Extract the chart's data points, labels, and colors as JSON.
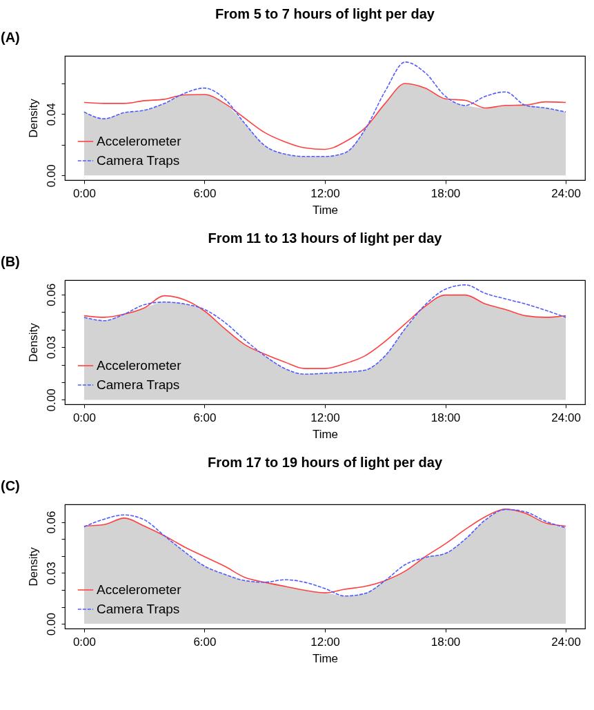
{
  "chart_data": [
    {
      "type": "line",
      "title": "From 5 to 7 hours of light per day",
      "xlabel": "Time",
      "ylabel": "Density",
      "annotations": [
        "(A)"
      ],
      "legend": "bottom left",
      "grid": false,
      "x": [
        0,
        1,
        2,
        3,
        4,
        5,
        6,
        7,
        8,
        9,
        10,
        11,
        12,
        13,
        14,
        15,
        16,
        17,
        18,
        19,
        20,
        21,
        22,
        23,
        24
      ],
      "xlim": [
        -0.96,
        24.96
      ],
      "xticks": [
        {
          "value": 0,
          "label": "0:00"
        },
        {
          "value": 6,
          "label": "6:00"
        },
        {
          "value": 12,
          "label": "12:00"
        },
        {
          "value": 18,
          "label": "18:00"
        },
        {
          "value": 24,
          "label": "24:00"
        }
      ],
      "ylim": [
        -0.003,
        0.078
      ],
      "yticks": [
        {
          "value": 0,
          "label": "0.00"
        },
        {
          "value": 0.02,
          "label": null
        },
        0.04,
        {
          "value": 0.06,
          "label": null
        }
      ],
      "series": [
        {
          "type": "area",
          "color": "#d3d3d3",
          "values": [
            0.0414,
            0.037,
            0.041,
            0.0426,
            0.047,
            0.0526,
            0.0528,
            0.047,
            0.034,
            0.0195,
            0.014,
            0.0124,
            0.0124,
            0.0148,
            0.03,
            0.047,
            0.06,
            0.057,
            0.05,
            0.0457,
            0.044,
            0.0457,
            0.0457,
            0.044,
            0.0414
          ]
        },
        {
          "name": "Accelerometer",
          "color": "#ff4040",
          "line_style": "solid",
          "values": [
            0.0476,
            0.047,
            0.047,
            0.0488,
            0.0497,
            0.0526,
            0.0528,
            0.047,
            0.0374,
            0.028,
            0.022,
            0.018,
            0.017,
            0.022,
            0.031,
            0.047,
            0.06,
            0.057,
            0.05,
            0.049,
            0.044,
            0.0457,
            0.046,
            0.048,
            0.0476
          ]
        },
        {
          "name": "Camera Traps",
          "color": "#4f5bff",
          "line_style": "dashed",
          "values": [
            0.0414,
            0.037,
            0.041,
            0.0426,
            0.047,
            0.0536,
            0.057,
            0.05,
            0.034,
            0.0195,
            0.014,
            0.0124,
            0.0124,
            0.0148,
            0.03,
            0.055,
            0.074,
            0.067,
            0.0517,
            0.0457,
            0.0517,
            0.0545,
            0.0457,
            0.044,
            0.0414
          ]
        }
      ]
    },
    {
      "type": "line",
      "title": "From 11 to 13 hours of light per day",
      "xlabel": "Time",
      "ylabel": "Density",
      "annotations": [
        "(B)"
      ],
      "legend": "bottom left",
      "grid": false,
      "x": [
        0,
        1,
        2,
        3,
        4,
        5,
        6,
        7,
        8,
        9,
        10,
        11,
        12,
        13,
        14,
        15,
        16,
        17,
        18,
        19,
        20,
        21,
        22,
        23,
        24
      ],
      "xlim": [
        -0.96,
        24.96
      ],
      "xticks": [
        {
          "value": 0,
          "label": "0:00"
        },
        {
          "value": 6,
          "label": "6:00"
        },
        {
          "value": 12,
          "label": "12:00"
        },
        {
          "value": 18,
          "label": "18:00"
        },
        {
          "value": 24,
          "label": "24:00"
        }
      ],
      "ylim": [
        -0.0026,
        0.0682
      ],
      "yticks": [
        {
          "value": 0,
          "label": "0.00"
        },
        {
          "value": 0.01,
          "label": null
        },
        {
          "value": 0.02,
          "label": null
        },
        0.03,
        {
          "value": 0.04,
          "label": null
        },
        {
          "value": 0.05,
          "label": null
        },
        0.06
      ],
      "series": [
        {
          "type": "area",
          "color": "#d3d3d3",
          "values": [
            0.047,
            0.0451,
            0.0488,
            0.0524,
            0.0557,
            0.0546,
            0.0506,
            0.0406,
            0.0315,
            0.0251,
            0.0178,
            0.0146,
            0.0151,
            0.0157,
            0.0169,
            0.0251,
            0.0406,
            0.0533,
            0.0597,
            0.0597,
            0.0546,
            0.0515,
            0.0479,
            0.047,
            0.047
          ]
        },
        {
          "name": "Accelerometer",
          "color": "#ff4040",
          "line_style": "solid",
          "values": [
            0.0479,
            0.047,
            0.0488,
            0.0524,
            0.0593,
            0.057,
            0.0506,
            0.0406,
            0.0315,
            0.026,
            0.0215,
            0.0178,
            0.0178,
            0.0206,
            0.0251,
            0.0333,
            0.0433,
            0.0533,
            0.0597,
            0.0597,
            0.0546,
            0.0515,
            0.0479,
            0.047,
            0.0479
          ]
        },
        {
          "name": "Camera Traps",
          "color": "#4f5bff",
          "line_style": "dashed",
          "values": [
            0.047,
            0.0451,
            0.0488,
            0.0542,
            0.0557,
            0.0546,
            0.0515,
            0.0442,
            0.0342,
            0.0251,
            0.0178,
            0.0146,
            0.0151,
            0.0157,
            0.0169,
            0.0251,
            0.0406,
            0.0542,
            0.063,
            0.0655,
            0.0606,
            0.0575,
            0.0546,
            0.051,
            0.047
          ]
        }
      ]
    },
    {
      "type": "line",
      "title": "From 17 to 19 hours of light per day",
      "xlabel": "Time",
      "ylabel": "Density",
      "annotations": [
        "(C)"
      ],
      "legend": "bottom left",
      "grid": false,
      "x": [
        0,
        1,
        2,
        3,
        4,
        5,
        6,
        7,
        8,
        9,
        10,
        11,
        12,
        13,
        14,
        15,
        16,
        17,
        18,
        19,
        20,
        21,
        22,
        23,
        24
      ],
      "xlim": [
        -0.96,
        24.96
      ],
      "xticks": [
        {
          "value": 0,
          "label": "0:00"
        },
        {
          "value": 6,
          "label": "6:00"
        },
        {
          "value": 12,
          "label": "12:00"
        },
        {
          "value": 18,
          "label": "18:00"
        },
        {
          "value": 24,
          "label": "24:00"
        }
      ],
      "ylim": [
        -0.0028,
        0.0704
      ],
      "yticks": [
        {
          "value": 0,
          "label": "0.00"
        },
        {
          "value": 0.01,
          "label": null
        },
        {
          "value": 0.02,
          "label": null
        },
        0.03,
        {
          "value": 0.04,
          "label": null
        },
        {
          "value": 0.05,
          "label": null
        },
        0.06
      ],
      "series": [
        {
          "type": "area",
          "color": "#d3d3d3",
          "values": [
            0.0572,
            0.0585,
            0.0623,
            0.0576,
            0.0519,
            0.0425,
            0.034,
            0.0292,
            0.0255,
            0.0245,
            0.0221,
            0.0198,
            0.0183,
            0.0164,
            0.0179,
            0.0255,
            0.0311,
            0.0391,
            0.0415,
            0.05,
            0.0613,
            0.0674,
            0.0651,
            0.0594,
            0.0566
          ]
        },
        {
          "name": "Accelerometer",
          "color": "#ff4040",
          "line_style": "solid",
          "values": [
            0.0576,
            0.0585,
            0.0623,
            0.0576,
            0.0519,
            0.0453,
            0.0396,
            0.034,
            0.0274,
            0.0245,
            0.0221,
            0.0198,
            0.0183,
            0.0204,
            0.0221,
            0.0255,
            0.0311,
            0.0396,
            0.0472,
            0.0557,
            0.0632,
            0.0676,
            0.0651,
            0.0594,
            0.0576
          ]
        },
        {
          "name": "Camera Traps",
          "color": "#4f5bff",
          "line_style": "dashed",
          "values": [
            0.0572,
            0.0617,
            0.0642,
            0.0613,
            0.0519,
            0.0425,
            0.034,
            0.0292,
            0.0255,
            0.0245,
            0.026,
            0.0245,
            0.0208,
            0.0164,
            0.0179,
            0.0255,
            0.0349,
            0.0391,
            0.0415,
            0.05,
            0.0613,
            0.0674,
            0.066,
            0.0604,
            0.0566
          ]
        }
      ]
    }
  ]
}
